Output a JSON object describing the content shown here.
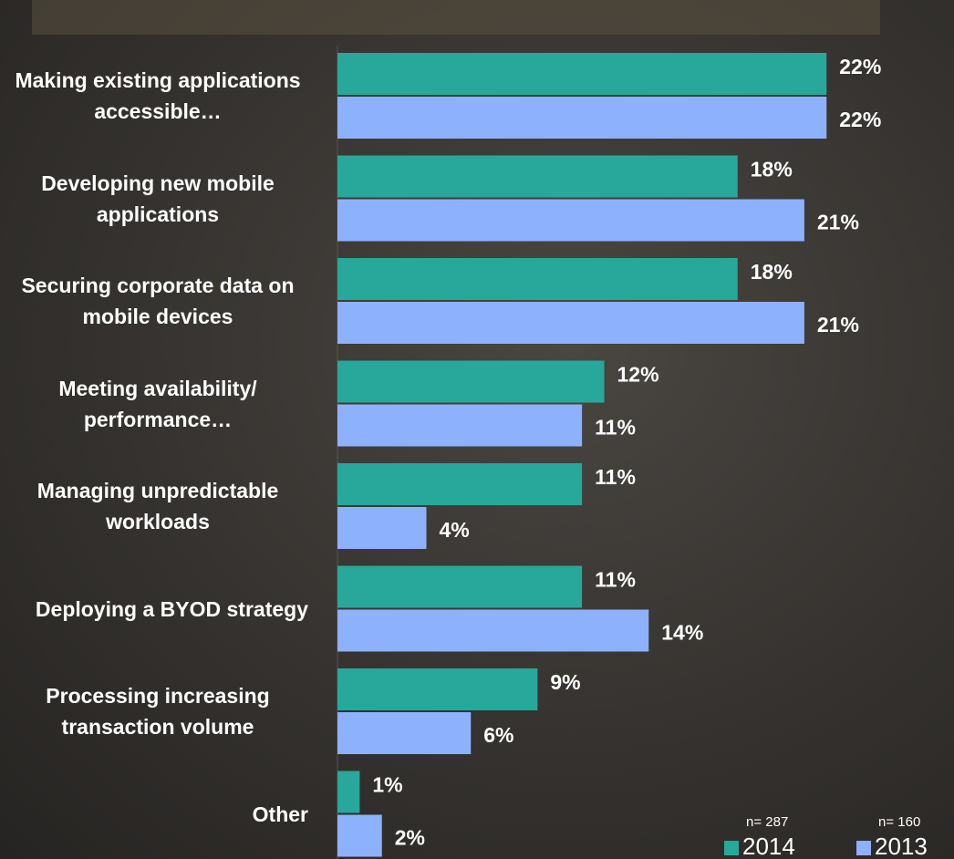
{
  "chart_data": {
    "type": "bar",
    "orientation": "horizontal",
    "categories": [
      "Making existing applications accessible…",
      "Developing new mobile applications",
      "Securing corporate data on mobile devices",
      "Meeting availability/ performance…",
      "Managing unpredictable workloads",
      "Deploying a BYOD strategy",
      "Processing increasing transaction volume",
      "Other"
    ],
    "series": [
      {
        "name": "2014",
        "sample_label": "n= 287",
        "color": "#27a89a",
        "values": [
          22,
          18,
          18,
          12,
          11,
          11,
          9,
          1
        ],
        "value_labels": [
          "22%",
          "18%",
          "18%",
          "12%",
          "11%",
          "11%",
          "9%",
          "1%"
        ]
      },
      {
        "name": "2013",
        "sample_label": "n= 160",
        "color": "#8eb1fd",
        "values": [
          22,
          21,
          21,
          11,
          4,
          14,
          6,
          2
        ],
        "value_labels": [
          "22%",
          "21%",
          "21%",
          "11%",
          "4%",
          "14%",
          "6%",
          "2%"
        ]
      }
    ],
    "xlim": [
      0,
      24
    ],
    "legend": "bottom-right"
  }
}
